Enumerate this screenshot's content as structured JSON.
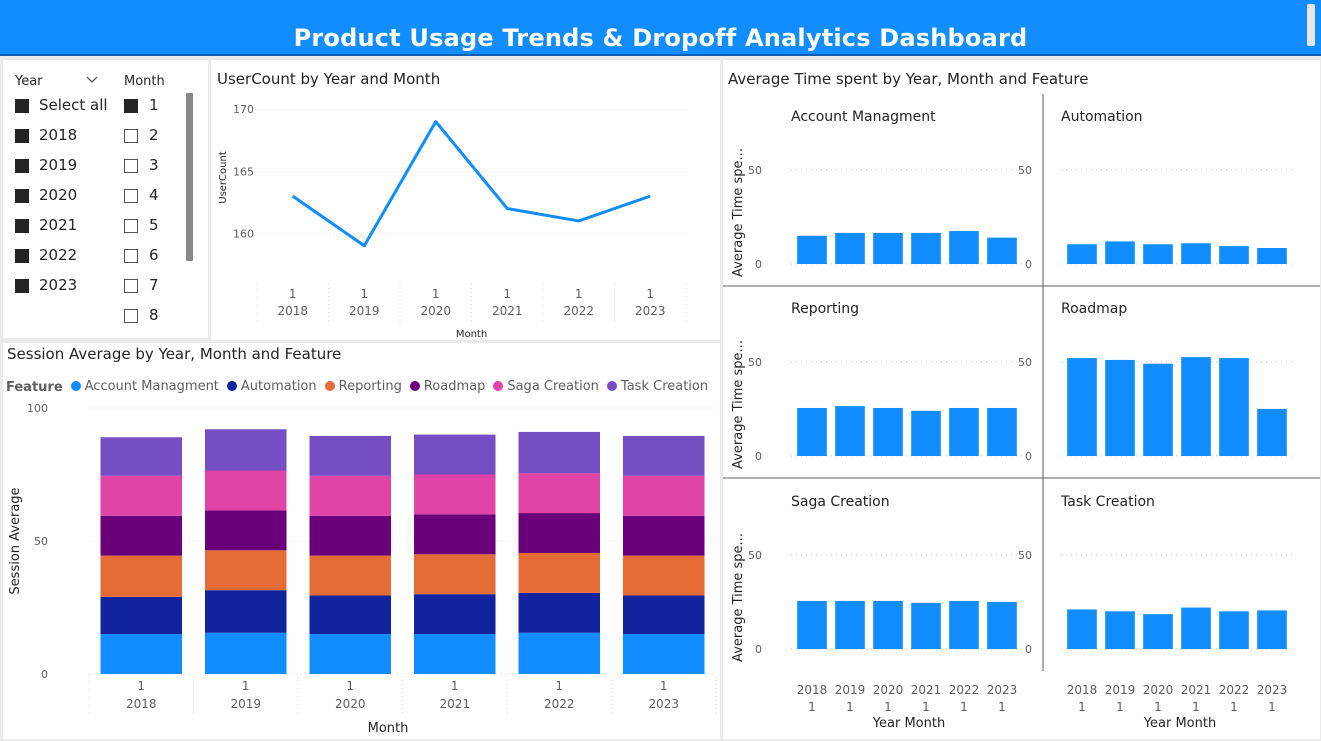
{
  "banner": {
    "title": "Product Usage Trends & Dropoff Analytics Dashboard"
  },
  "colors": {
    "accent": "#118dff",
    "account": "#118dff",
    "automation": "#12239e",
    "reporting": "#e66c37",
    "roadmap": "#6b007b",
    "saga": "#e044a7",
    "task": "#744ec2"
  },
  "slicers": {
    "year_header": "Year",
    "month_header": "Month",
    "year_items": [
      {
        "label": "Select all",
        "checked": true
      },
      {
        "label": "2018",
        "checked": true
      },
      {
        "label": "2019",
        "checked": true
      },
      {
        "label": "2020",
        "checked": true
      },
      {
        "label": "2021",
        "checked": true
      },
      {
        "label": "2022",
        "checked": true
      },
      {
        "label": "2023",
        "checked": true
      }
    ],
    "month_items": [
      {
        "label": "1",
        "checked": true
      },
      {
        "label": "2",
        "checked": false
      },
      {
        "label": "3",
        "checked": false
      },
      {
        "label": "4",
        "checked": false
      },
      {
        "label": "5",
        "checked": false
      },
      {
        "label": "6",
        "checked": false
      },
      {
        "label": "7",
        "checked": false
      },
      {
        "label": "8",
        "checked": false
      }
    ]
  },
  "chart_data": [
    {
      "type": "line",
      "title": "UserCount by Year and Month",
      "xlabel": "Month",
      "ylabel": "UserCount",
      "x_top": [
        "1",
        "1",
        "1",
        "1",
        "1",
        "1"
      ],
      "x_bottom": [
        "2018",
        "2019",
        "2020",
        "2021",
        "2022",
        "2023"
      ],
      "values": [
        163,
        159,
        169,
        162,
        161,
        163
      ],
      "ylim": [
        158.5,
        170.5
      ],
      "yticks": [
        "170",
        "165",
        "160"
      ],
      "series_color": "#118dff"
    },
    {
      "type": "bar",
      "stacked": true,
      "title": "Session Average by Year, Month and Feature",
      "legend_title": "Feature",
      "xlabel": "Month",
      "ylabel": "Session Average",
      "x_top": [
        "1",
        "1",
        "1",
        "1",
        "1",
        "1"
      ],
      "x_bottom": [
        "2018",
        "2019",
        "2020",
        "2021",
        "2022",
        "2023"
      ],
      "ylim": [
        0,
        100
      ],
      "yticks": [
        "100",
        "50",
        "0"
      ],
      "series": [
        {
          "name": "Account Managment",
          "color": "#118dff",
          "values": [
            15,
            15.5,
            15,
            15,
            15.5,
            15
          ]
        },
        {
          "name": "Automation",
          "color": "#12239e",
          "values": [
            14,
            16,
            14.5,
            15,
            15,
            14.5
          ]
        },
        {
          "name": "Reporting",
          "color": "#e66c37",
          "values": [
            15.5,
            15,
            15,
            15,
            15,
            15
          ]
        },
        {
          "name": "Roadmap",
          "color": "#6b007b",
          "values": [
            15,
            15,
            15,
            15,
            15,
            15
          ]
        },
        {
          "name": "Saga Creation",
          "color": "#e044a7",
          "values": [
            15,
            15,
            15,
            15,
            15,
            15
          ]
        },
        {
          "name": "Task Creation",
          "color": "#744ec2",
          "values": [
            14.5,
            15.5,
            15,
            15,
            15.5,
            15
          ]
        }
      ]
    },
    {
      "type": "bar",
      "small_multiples": true,
      "title": "Average Time spent by Year, Month and Feature",
      "xlabel": "Year Month",
      "ylabel": "Average Time spe...",
      "x_top": [
        "2018",
        "2019",
        "2020",
        "2021",
        "2022",
        "2023"
      ],
      "x_bottom": [
        "1",
        "1",
        "1",
        "1",
        "1",
        "1"
      ],
      "ylim": [
        0,
        60
      ],
      "yticks": [
        "50",
        "0"
      ],
      "panels": [
        {
          "name": "Account Managment",
          "values": [
            15,
            16.5,
            16.5,
            16.5,
            17.5,
            14
          ]
        },
        {
          "name": "Automation",
          "values": [
            10.5,
            12,
            10.5,
            11,
            9.5,
            8.5
          ]
        },
        {
          "name": "Reporting",
          "values": [
            25.5,
            26.5,
            25.5,
            24,
            25.5,
            25.5
          ]
        },
        {
          "name": "Roadmap",
          "values": [
            52,
            51,
            49,
            52.5,
            52,
            25
          ]
        },
        {
          "name": "Saga Creation",
          "values": [
            25.5,
            25.5,
            25.5,
            24.5,
            25.5,
            25
          ]
        },
        {
          "name": "Task Creation",
          "values": [
            21,
            20,
            18.5,
            22,
            20,
            20.5
          ]
        }
      ]
    }
  ]
}
